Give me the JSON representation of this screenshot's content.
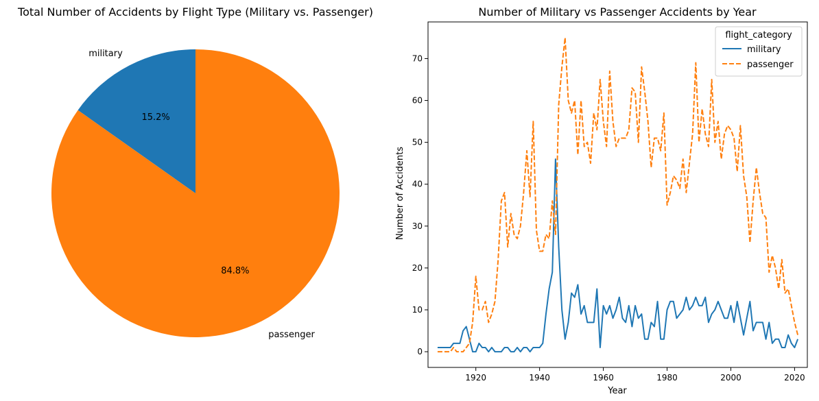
{
  "chart_data": [
    {
      "type": "pie",
      "title": "Total Number of Accidents by Flight Type (Military vs. Passenger)",
      "slices": [
        {
          "label": "military",
          "value": 15.2,
          "pct_label": "15.2%",
          "color": "#1f77b4"
        },
        {
          "label": "passenger",
          "value": 84.8,
          "pct_label": "84.8%",
          "color": "#ff7f0e"
        }
      ]
    },
    {
      "type": "line",
      "title": "Number of Military vs Passenger Accidents by Year",
      "xlabel": "Year",
      "ylabel": "Number of Accidents",
      "xlim": [
        1905,
        2024
      ],
      "ylim": [
        -3.75,
        78.75
      ],
      "xticks": [
        1920,
        1940,
        1960,
        1980,
        2000,
        2020
      ],
      "yticks": [
        0,
        10,
        20,
        30,
        40,
        50,
        60,
        70
      ],
      "grid": false,
      "legend": {
        "title": "flight_category",
        "placement": "top-right"
      },
      "x": [
        1908,
        1909,
        1910,
        1911,
        1912,
        1913,
        1914,
        1915,
        1916,
        1917,
        1918,
        1919,
        1920,
        1921,
        1922,
        1923,
        1924,
        1925,
        1926,
        1927,
        1928,
        1929,
        1930,
        1931,
        1932,
        1933,
        1934,
        1935,
        1936,
        1937,
        1938,
        1939,
        1940,
        1941,
        1942,
        1943,
        1944,
        1945,
        1946,
        1947,
        1948,
        1949,
        1950,
        1951,
        1952,
        1953,
        1954,
        1955,
        1956,
        1957,
        1958,
        1959,
        1960,
        1961,
        1962,
        1963,
        1964,
        1965,
        1966,
        1967,
        1968,
        1969,
        1970,
        1971,
        1972,
        1973,
        1974,
        1975,
        1976,
        1977,
        1978,
        1979,
        1980,
        1981,
        1982,
        1983,
        1984,
        1985,
        1986,
        1987,
        1988,
        1989,
        1990,
        1991,
        1992,
        1993,
        1994,
        1995,
        1996,
        1997,
        1998,
        1999,
        2000,
        2001,
        2002,
        2003,
        2004,
        2005,
        2006,
        2007,
        2008,
        2009,
        2010,
        2011,
        2012,
        2013,
        2014,
        2015,
        2016,
        2017,
        2018,
        2019,
        2020,
        2021
      ],
      "series": [
        {
          "name": "military",
          "color": "#1f77b4",
          "dash": "solid",
          "values": [
            1,
            1,
            1,
            1,
            1,
            2,
            2,
            2,
            5,
            6,
            3,
            0,
            0,
            2,
            1,
            1,
            0,
            1,
            0,
            0,
            0,
            1,
            1,
            0,
            0,
            1,
            0,
            1,
            1,
            0,
            1,
            1,
            1,
            2,
            9,
            15,
            19,
            46,
            25,
            10,
            3,
            7,
            14,
            13,
            16,
            9,
            11,
            7,
            7,
            7,
            15,
            1,
            11,
            9,
            11,
            8,
            10,
            13,
            8,
            7,
            11,
            6,
            11,
            8,
            9,
            3,
            3,
            7,
            6,
            12,
            3,
            3,
            10,
            12,
            12,
            8,
            9,
            10,
            13,
            10,
            11,
            13,
            11,
            11,
            13,
            7,
            9,
            10,
            12,
            10,
            8,
            8,
            11,
            7,
            12,
            8,
            4,
            8,
            12,
            5,
            7,
            7,
            7,
            3,
            7,
            2,
            3,
            3,
            1,
            1,
            4,
            2,
            1,
            3
          ]
        },
        {
          "name": "passenger",
          "color": "#ff7f0e",
          "dash": "dashed",
          "values": [
            0,
            0,
            0,
            0,
            0,
            1,
            0,
            0,
            0,
            1,
            2,
            7,
            18,
            10,
            10,
            12,
            7,
            9,
            12,
            22,
            36,
            38,
            25,
            33,
            28,
            27,
            30,
            38,
            48,
            37,
            55,
            29,
            24,
            24,
            28,
            27,
            36,
            28,
            59,
            68,
            75,
            60,
            57,
            60,
            47,
            60,
            49,
            50,
            45,
            57,
            53,
            65,
            55,
            49,
            67,
            55,
            49,
            51,
            51,
            51,
            53,
            63,
            62,
            50,
            68,
            62,
            55,
            44,
            51,
            51,
            48,
            57,
            35,
            38,
            42,
            41,
            39,
            46,
            38,
            45,
            52,
            69,
            50,
            58,
            52,
            49,
            65,
            50,
            55,
            46,
            52,
            54,
            53,
            51,
            43,
            54,
            42,
            37,
            26,
            36,
            44,
            38,
            33,
            32,
            19,
            23,
            20,
            15,
            22,
            14,
            15,
            11,
            7,
            4
          ]
        }
      ]
    }
  ]
}
